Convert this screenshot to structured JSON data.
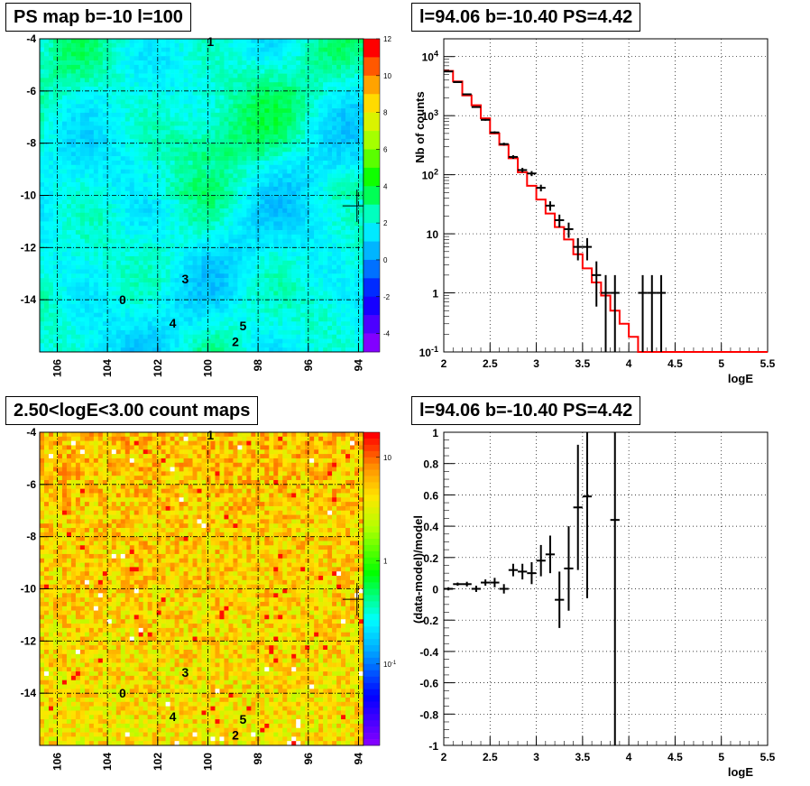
{
  "titles": {
    "tl": "PS map b=-10 l=100",
    "tr": "l=94.06 b=-10.40 PS=4.42",
    "bl": "2.50<logE<3.00 count maps",
    "br": "l=94.06 b=-10.40 PS=4.42"
  },
  "chart_data": [
    {
      "type": "heatmap",
      "panel": "tl",
      "title": "PS map b=-10 l=100",
      "x_ticks": [
        "106",
        "104",
        "102",
        "100",
        "98",
        "96",
        "94"
      ],
      "y_ticks": [
        "-4",
        "-6",
        "-8",
        "-10",
        "-12",
        "-14"
      ],
      "xlim": [
        106.7,
        93.8
      ],
      "ylim": [
        -16.0,
        -4.0
      ],
      "colorbar_ticks": [
        "12",
        "10",
        "8",
        "6",
        "4",
        "2",
        "0",
        "-2",
        "-4"
      ],
      "colorbar_range": [
        -5,
        12
      ],
      "sources": [
        {
          "label": "1",
          "l": 99.9,
          "b": -4.1
        },
        {
          "label": "3",
          "l": 100.9,
          "b": -13.2
        },
        {
          "label": "0",
          "l": 103.4,
          "b": -14.0
        },
        {
          "label": "4",
          "l": 101.4,
          "b": -14.9
        },
        {
          "label": "5",
          "l": 98.6,
          "b": -15.0
        },
        {
          "label": "2",
          "l": 98.9,
          "b": -15.6
        }
      ],
      "marker": {
        "l": 94.06,
        "b": -10.4
      }
    },
    {
      "type": "line",
      "panel": "tr",
      "title": "l=94.06 b=-10.40 PS=4.42",
      "xlabel": "logE",
      "ylabel": "Nb of counts",
      "xlim": [
        2,
        5.5
      ],
      "ylim": [
        0.1,
        20000
      ],
      "yscale": "log",
      "x_ticks": [
        "2",
        "2.5",
        "3",
        "3.5",
        "4",
        "4.5",
        "5",
        "5.5"
      ],
      "y_ticks": [
        "10^{-1}",
        "1",
        "10",
        "10^{2}",
        "10^{3}",
        "10^{4}"
      ],
      "grid": true,
      "series": [
        {
          "kind": "data",
          "x": [
            2.05,
            2.15,
            2.25,
            2.35,
            2.45,
            2.55,
            2.65,
            2.75,
            2.85,
            2.95,
            3.05,
            3.15,
            3.25,
            3.35,
            3.45,
            3.55,
            3.65,
            3.75,
            3.85,
            4.15,
            4.25,
            4.35
          ],
          "y": [
            5600,
            3700,
            2300,
            1400,
            850,
            520,
            330,
            200,
            120,
            105,
            60,
            30,
            17,
            12,
            6,
            6,
            2,
            1,
            1,
            1,
            1,
            1
          ]
        },
        {
          "kind": "model",
          "color": "#ff0000",
          "edges": [
            2.0,
            2.1,
            2.2,
            2.3,
            2.4,
            2.5,
            2.6,
            2.7,
            2.8,
            2.9,
            3.0,
            3.1,
            3.2,
            3.3,
            3.4,
            3.5,
            3.6,
            3.7,
            3.8,
            3.9,
            4.0,
            4.1,
            4.2,
            5.5
          ],
          "values": [
            5700,
            3800,
            2200,
            1500,
            900,
            500,
            320,
            190,
            110,
            65,
            38,
            22,
            13,
            8,
            4.5,
            2.6,
            1.5,
            0.9,
            0.5,
            0.3,
            0.18,
            0.1,
            0.1
          ]
        }
      ]
    },
    {
      "type": "heatmap",
      "panel": "bl",
      "title": "2.50<logE<3.00 count maps",
      "x_ticks": [
        "106",
        "104",
        "102",
        "100",
        "98",
        "96",
        "94"
      ],
      "y_ticks": [
        "-4",
        "-6",
        "-8",
        "-10",
        "-12",
        "-14"
      ],
      "xlim": [
        106.7,
        93.8
      ],
      "ylim": [
        -16.0,
        -4.0
      ],
      "colorbar_ticks": [
        "10",
        "1",
        "10^{-1}"
      ],
      "colorbar_scale": "log",
      "sources": [
        {
          "label": "1",
          "l": 99.9,
          "b": -4.1
        },
        {
          "label": "3",
          "l": 100.9,
          "b": -13.2
        },
        {
          "label": "0",
          "l": 103.4,
          "b": -14.0
        },
        {
          "label": "4",
          "l": 101.4,
          "b": -14.9
        },
        {
          "label": "5",
          "l": 98.6,
          "b": -15.0
        },
        {
          "label": "2",
          "l": 98.9,
          "b": -15.6
        }
      ],
      "marker": {
        "l": 94.06,
        "b": -10.4
      }
    },
    {
      "type": "scatter",
      "panel": "br",
      "title": "l=94.06 b=-10.40 PS=4.42",
      "xlabel": "logE",
      "ylabel": "(data-model)/model",
      "xlim": [
        2,
        5.5
      ],
      "ylim": [
        -1,
        1
      ],
      "x_ticks": [
        "2",
        "2.5",
        "3",
        "3.5",
        "4",
        "4.5",
        "5",
        "5.5"
      ],
      "y_ticks": [
        "-1",
        "-0.8",
        "-0.6",
        "-0.4",
        "-0.2",
        "0",
        "0.2",
        "0.4",
        "0.6",
        "0.8",
        "1"
      ],
      "grid": true,
      "points": [
        {
          "x": 2.05,
          "y": 0.0,
          "err": 0.01
        },
        {
          "x": 2.15,
          "y": 0.03,
          "err": 0.01
        },
        {
          "x": 2.25,
          "y": 0.03,
          "err": 0.015
        },
        {
          "x": 2.35,
          "y": 0.0,
          "err": 0.02
        },
        {
          "x": 2.45,
          "y": 0.04,
          "err": 0.02
        },
        {
          "x": 2.55,
          "y": 0.04,
          "err": 0.03
        },
        {
          "x": 2.65,
          "y": 0.0,
          "err": 0.03
        },
        {
          "x": 2.75,
          "y": 0.12,
          "err": 0.04
        },
        {
          "x": 2.85,
          "y": 0.11,
          "err": 0.05
        },
        {
          "x": 2.95,
          "y": 0.1,
          "err": 0.07
        },
        {
          "x": 3.05,
          "y": 0.18,
          "err": 0.1
        },
        {
          "x": 3.15,
          "y": 0.22,
          "err": 0.12
        },
        {
          "x": 3.25,
          "y": -0.07,
          "err": 0.18
        },
        {
          "x": 3.35,
          "y": 0.13,
          "err": 0.27
        },
        {
          "x": 3.45,
          "y": 0.52,
          "err": 0.4
        },
        {
          "x": 3.55,
          "y": 0.59,
          "err": 0.65
        },
        {
          "x": 3.85,
          "y": 0.44,
          "err": 1.5
        }
      ]
    }
  ]
}
